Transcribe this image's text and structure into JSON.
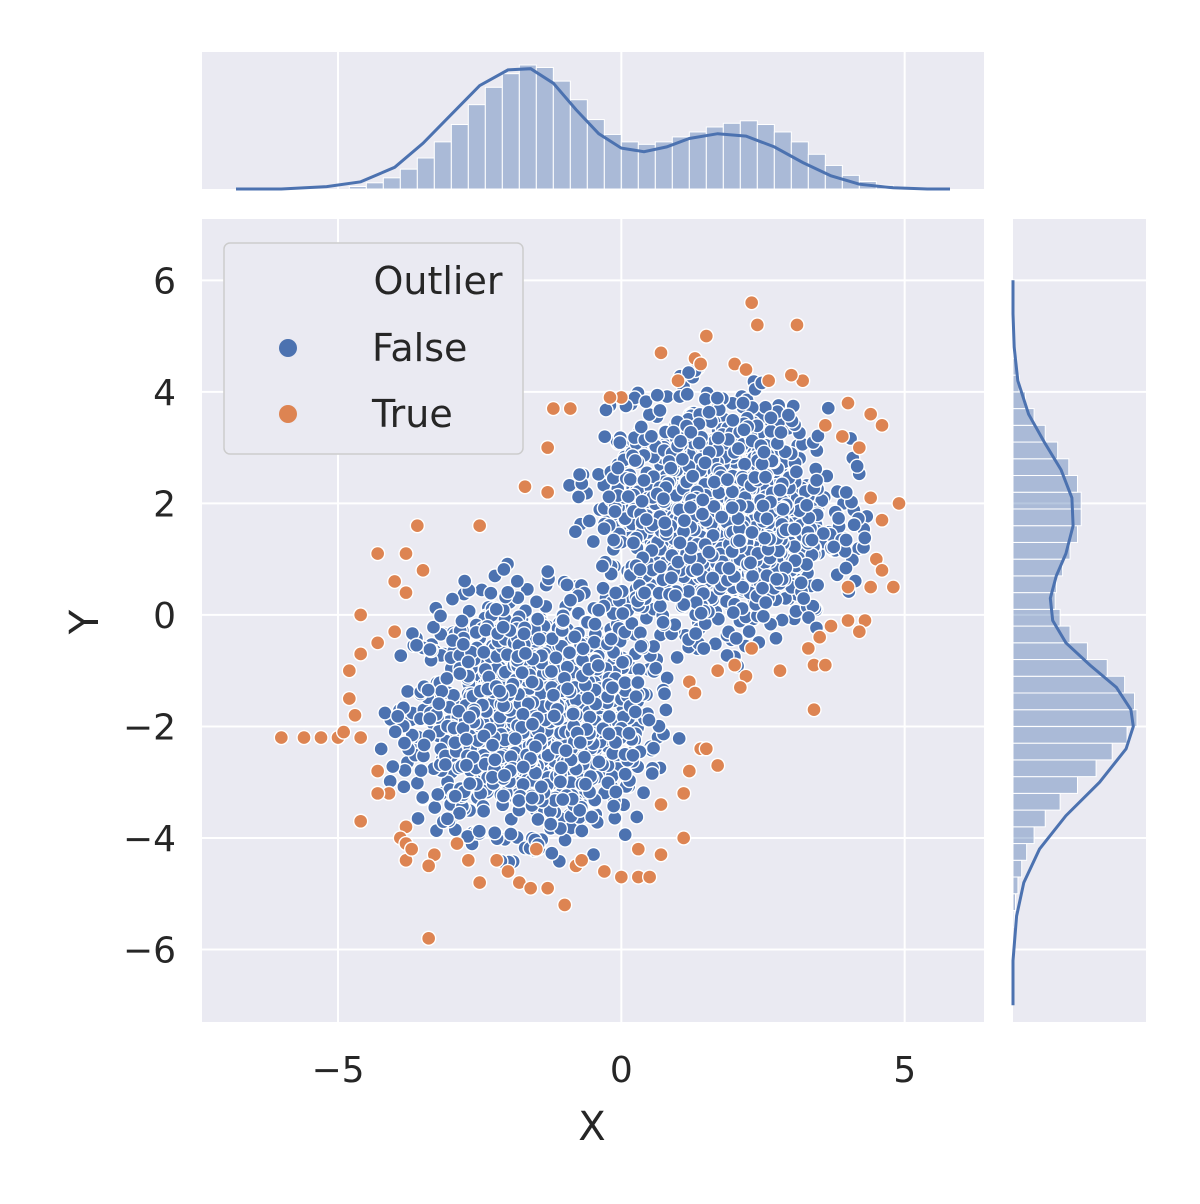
{
  "chart_data": {
    "type": "scatter",
    "xlabel": "X",
    "ylabel": "Y",
    "xlim": [
      -7.4,
      6.4
    ],
    "ylim": [
      -7.3,
      7.1
    ],
    "x_ticks": [
      -5,
      0,
      5
    ],
    "y_ticks": [
      -6,
      -4,
      -2,
      0,
      2,
      4,
      6
    ],
    "x_tick_labels": [
      "−5",
      "0",
      "5"
    ],
    "y_tick_labels": [
      "−6",
      "−4",
      "−2",
      "0",
      "2",
      "4",
      "6"
    ],
    "grid": true,
    "legend": {
      "title": "Outlier",
      "placement": "upper-left",
      "entries": [
        {
          "label": "False",
          "color": "#4c72b0"
        },
        {
          "label": "True",
          "color": "#dd8452"
        }
      ]
    },
    "clusters": [
      {
        "center": [
          -1.6,
          -1.8
        ],
        "approx_std": [
          1.0,
          1.0
        ]
      },
      {
        "center": [
          1.7,
          1.8
        ],
        "approx_std": [
          1.0,
          1.0
        ]
      }
    ],
    "series": [
      {
        "name": "True",
        "color": "#dd8452",
        "points": [
          [
            2.3,
            5.6
          ],
          [
            2.4,
            5.2
          ],
          [
            3.1,
            5.2
          ],
          [
            1.5,
            5.0
          ],
          [
            0.7,
            4.7
          ],
          [
            1.3,
            4.6
          ],
          [
            1.4,
            4.5
          ],
          [
            2.0,
            4.5
          ],
          [
            2.2,
            4.4
          ],
          [
            1.0,
            4.2
          ],
          [
            2.6,
            4.2
          ],
          [
            3.2,
            4.2
          ],
          [
            3.0,
            4.3
          ],
          [
            4.0,
            3.8
          ],
          [
            0.0,
            3.9
          ],
          [
            -0.2,
            3.9
          ],
          [
            -1.2,
            3.7
          ],
          [
            -0.9,
            3.7
          ],
          [
            4.4,
            3.6
          ],
          [
            4.6,
            3.4
          ],
          [
            3.6,
            3.4
          ],
          [
            3.9,
            3.2
          ],
          [
            4.2,
            3.0
          ],
          [
            -1.3,
            3.0
          ],
          [
            -1.7,
            2.3
          ],
          [
            -1.3,
            2.2
          ],
          [
            4.4,
            2.1
          ],
          [
            4.9,
            2.0
          ],
          [
            4.6,
            1.7
          ],
          [
            -3.6,
            1.6
          ],
          [
            -2.5,
            1.6
          ],
          [
            -4.3,
            1.1
          ],
          [
            -3.8,
            1.1
          ],
          [
            4.5,
            1.0
          ],
          [
            4.6,
            0.8
          ],
          [
            -3.5,
            0.8
          ],
          [
            -4.0,
            0.6
          ],
          [
            4.0,
            0.5
          ],
          [
            4.4,
            0.5
          ],
          [
            4.8,
            0.5
          ],
          [
            -3.8,
            0.4
          ],
          [
            4.0,
            -0.1
          ],
          [
            4.3,
            -0.1
          ],
          [
            -4.6,
            0.0
          ],
          [
            3.7,
            -0.2
          ],
          [
            4.2,
            -0.3
          ],
          [
            -4.0,
            -0.3
          ],
          [
            3.5,
            -0.4
          ],
          [
            3.3,
            -0.6
          ],
          [
            2.3,
            -0.6
          ],
          [
            -4.3,
            -0.5
          ],
          [
            3.4,
            -0.9
          ],
          [
            2.0,
            -0.9
          ],
          [
            -4.6,
            -0.7
          ],
          [
            -4.8,
            -1.0
          ],
          [
            1.7,
            -1.0
          ],
          [
            2.2,
            -1.1
          ],
          [
            2.8,
            -1.0
          ],
          [
            3.6,
            -0.9
          ],
          [
            2.1,
            -1.3
          ],
          [
            1.2,
            -1.2
          ],
          [
            -4.8,
            -1.5
          ],
          [
            1.3,
            -1.4
          ],
          [
            3.4,
            -1.7
          ],
          [
            -4.7,
            -1.8
          ],
          [
            -6.0,
            -2.2
          ],
          [
            -5.6,
            -2.2
          ],
          [
            -5.3,
            -2.2
          ],
          [
            -5.0,
            -2.2
          ],
          [
            -4.9,
            -2.1
          ],
          [
            -4.6,
            -2.2
          ],
          [
            1.4,
            -2.4
          ],
          [
            1.5,
            -2.4
          ],
          [
            1.7,
            -2.7
          ],
          [
            1.2,
            -2.8
          ],
          [
            -4.3,
            -2.8
          ],
          [
            -4.1,
            -3.2
          ],
          [
            1.1,
            -3.2
          ],
          [
            -4.3,
            -3.2
          ],
          [
            0.7,
            -3.4
          ],
          [
            -4.6,
            -3.7
          ],
          [
            -3.8,
            -3.8
          ],
          [
            -3.9,
            -4.0
          ],
          [
            1.1,
            -4.0
          ],
          [
            -3.8,
            -4.1
          ],
          [
            -2.9,
            -4.1
          ],
          [
            -1.5,
            -4.2
          ],
          [
            0.3,
            -4.2
          ],
          [
            0.7,
            -4.3
          ],
          [
            -3.3,
            -4.3
          ],
          [
            -3.8,
            -4.4
          ],
          [
            -2.7,
            -4.4
          ],
          [
            -2.2,
            -4.4
          ],
          [
            -3.4,
            -4.5
          ],
          [
            -0.8,
            -4.5
          ],
          [
            -0.3,
            -4.6
          ],
          [
            0.0,
            -4.7
          ],
          [
            0.3,
            -4.7
          ],
          [
            0.5,
            -4.7
          ],
          [
            -2.5,
            -4.8
          ],
          [
            -1.8,
            -4.8
          ],
          [
            -1.6,
            -4.9
          ],
          [
            -1.3,
            -4.9
          ],
          [
            -1.0,
            -5.2
          ],
          [
            -3.4,
            -5.8
          ],
          [
            -0.7,
            -4.4
          ],
          [
            -2.0,
            -4.6
          ],
          [
            -3.7,
            -4.2
          ]
        ]
      },
      {
        "name": "False",
        "color": "#4c72b0",
        "points": []
      }
    ],
    "marginal_x": {
      "hist_edges": [
        -4.8,
        -4.5,
        -4.2,
        -3.9,
        -3.6,
        -3.3,
        -3.0,
        -2.7,
        -2.4,
        -2.1,
        -1.8,
        -1.5,
        -1.2,
        -0.9,
        -0.6,
        -0.3,
        0.0,
        0.3,
        0.6,
        0.9,
        1.2,
        1.5,
        1.8,
        2.1,
        2.4,
        2.7,
        3.0,
        3.3,
        3.6,
        3.9,
        4.2,
        4.5,
        4.8
      ],
      "hist_rel": [
        0.02,
        0.05,
        0.09,
        0.16,
        0.25,
        0.38,
        0.52,
        0.68,
        0.82,
        0.93,
        1.0,
        0.98,
        0.87,
        0.72,
        0.56,
        0.44,
        0.38,
        0.36,
        0.38,
        0.42,
        0.46,
        0.5,
        0.53,
        0.55,
        0.52,
        0.46,
        0.38,
        0.28,
        0.19,
        0.11,
        0.06,
        0.03
      ],
      "kde_x": [
        -6.8,
        -6.0,
        -5.2,
        -4.6,
        -4.0,
        -3.5,
        -3.0,
        -2.5,
        -2.0,
        -1.6,
        -1.2,
        -0.8,
        -0.4,
        0.0,
        0.4,
        0.8,
        1.2,
        1.7,
        2.2,
        2.7,
        3.2,
        3.7,
        4.2,
        4.8,
        5.4,
        5.8
      ],
      "kde_rel": [
        0.0,
        0.0,
        0.02,
        0.06,
        0.18,
        0.38,
        0.62,
        0.86,
        0.99,
        1.0,
        0.88,
        0.66,
        0.46,
        0.34,
        0.31,
        0.35,
        0.42,
        0.46,
        0.44,
        0.35,
        0.22,
        0.11,
        0.04,
        0.01,
        0.0,
        0.0
      ]
    },
    "marginal_y": {
      "hist_edges": [
        -5.6,
        -5.3,
        -5.0,
        -4.7,
        -4.4,
        -4.1,
        -3.8,
        -3.5,
        -3.2,
        -2.9,
        -2.6,
        -2.3,
        -2.0,
        -1.7,
        -1.4,
        -1.1,
        -0.8,
        -0.5,
        -0.2,
        0.1,
        0.4,
        0.7,
        1.0,
        1.3,
        1.6,
        1.9,
        2.2,
        2.5,
        2.8,
        3.1,
        3.4,
        3.7,
        4.0,
        4.3,
        4.6,
        4.9
      ],
      "hist_rel": [
        0.01,
        0.02,
        0.04,
        0.07,
        0.11,
        0.17,
        0.26,
        0.38,
        0.52,
        0.67,
        0.8,
        0.92,
        1.0,
        0.98,
        0.9,
        0.76,
        0.6,
        0.46,
        0.38,
        0.34,
        0.35,
        0.4,
        0.46,
        0.52,
        0.55,
        0.55,
        0.52,
        0.45,
        0.36,
        0.26,
        0.17,
        0.1,
        0.05,
        0.03,
        0.01
      ],
      "kde_y": [
        -7.0,
        -6.2,
        -5.4,
        -4.8,
        -4.2,
        -3.6,
        -3.0,
        -2.4,
        -2.0,
        -1.7,
        -1.3,
        -0.9,
        -0.5,
        -0.1,
        0.3,
        0.7,
        1.1,
        1.6,
        2.1,
        2.6,
        3.1,
        3.6,
        4.2,
        4.8,
        5.4,
        6.0
      ],
      "kde_rel": [
        0.0,
        0.0,
        0.03,
        0.09,
        0.22,
        0.44,
        0.72,
        0.94,
        1.0,
        0.98,
        0.86,
        0.64,
        0.44,
        0.33,
        0.31,
        0.36,
        0.44,
        0.5,
        0.49,
        0.4,
        0.26,
        0.13,
        0.04,
        0.01,
        0.0,
        0.0
      ]
    }
  }
}
